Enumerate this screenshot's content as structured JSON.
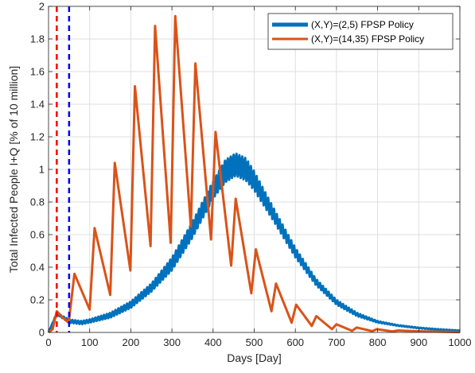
{
  "chart_data": {
    "type": "line",
    "xlabel": "Days [Day]",
    "ylabel": "Total Infected People I+Q [% of 10 million]",
    "xlim": [
      0,
      1000
    ],
    "ylim": [
      0,
      2
    ],
    "xticks": [
      0,
      100,
      200,
      300,
      400,
      500,
      600,
      700,
      800,
      900,
      1000
    ],
    "yticks": [
      0,
      0.2,
      0.4,
      0.6,
      0.8,
      1,
      1.2,
      1.4,
      1.6,
      1.8,
      2
    ],
    "xtick_labels": [
      "0",
      "100",
      "200",
      "300",
      "400",
      "500",
      "600",
      "700",
      "800",
      "900",
      "1000"
    ],
    "ytick_labels": [
      "0",
      "0.2",
      "0.4",
      "0.6",
      "0.8",
      "1",
      "1.2",
      "1.4",
      "1.6",
      "1.8",
      "2"
    ],
    "grid": true,
    "legend_position": "top-right",
    "series": [
      {
        "name": "(X,Y)=(2,5) FPSP Policy",
        "color": "#0072BD",
        "band_width": "oscillating",
        "x": [
          0,
          20,
          50,
          80,
          100,
          150,
          200,
          250,
          300,
          350,
          400,
          430,
          455,
          480,
          500,
          550,
          600,
          650,
          700,
          750,
          800,
          850,
          900,
          950,
          1000
        ],
        "y_upper": [
          0.0,
          0.12,
          0.08,
          0.07,
          0.08,
          0.12,
          0.19,
          0.3,
          0.46,
          0.68,
          0.93,
          1.06,
          1.1,
          1.07,
          0.99,
          0.75,
          0.52,
          0.33,
          0.2,
          0.12,
          0.07,
          0.045,
          0.03,
          0.02,
          0.012
        ],
        "y_lower": [
          0.0,
          0.11,
          0.06,
          0.05,
          0.06,
          0.09,
          0.15,
          0.25,
          0.38,
          0.58,
          0.82,
          0.92,
          0.96,
          0.93,
          0.87,
          0.67,
          0.46,
          0.29,
          0.17,
          0.1,
          0.06,
          0.04,
          0.025,
          0.015,
          0.01
        ]
      },
      {
        "name": "(X,Y)=(14,35) FPSP Policy",
        "color": "#D95319",
        "x": [
          0,
          10,
          20,
          35,
          49,
          63,
          100,
          112,
          150,
          161,
          199,
          210,
          248,
          259,
          297,
          308,
          346,
          357,
          395,
          406,
          444,
          455,
          493,
          504,
          542,
          553,
          591,
          602,
          640,
          651,
          689,
          700,
          738,
          749,
          787,
          798,
          836,
          850,
          900,
          950,
          1000
        ],
        "y": [
          0.0,
          0.02,
          0.13,
          0.09,
          0.06,
          0.36,
          0.14,
          0.64,
          0.23,
          1.04,
          0.38,
          1.51,
          0.53,
          1.88,
          0.55,
          1.94,
          0.65,
          1.65,
          0.57,
          1.23,
          0.41,
          0.82,
          0.24,
          0.51,
          0.13,
          0.3,
          0.06,
          0.17,
          0.04,
          0.1,
          0.02,
          0.05,
          0.01,
          0.03,
          0.008,
          0.02,
          0.006,
          0.012,
          0.007,
          0.004,
          0.002
        ]
      }
    ],
    "vertical_lines": [
      {
        "x": 20,
        "color": "#FF0000",
        "style": "dashed"
      },
      {
        "x": 50,
        "color": "#0000FF",
        "style": "dashed"
      }
    ]
  }
}
